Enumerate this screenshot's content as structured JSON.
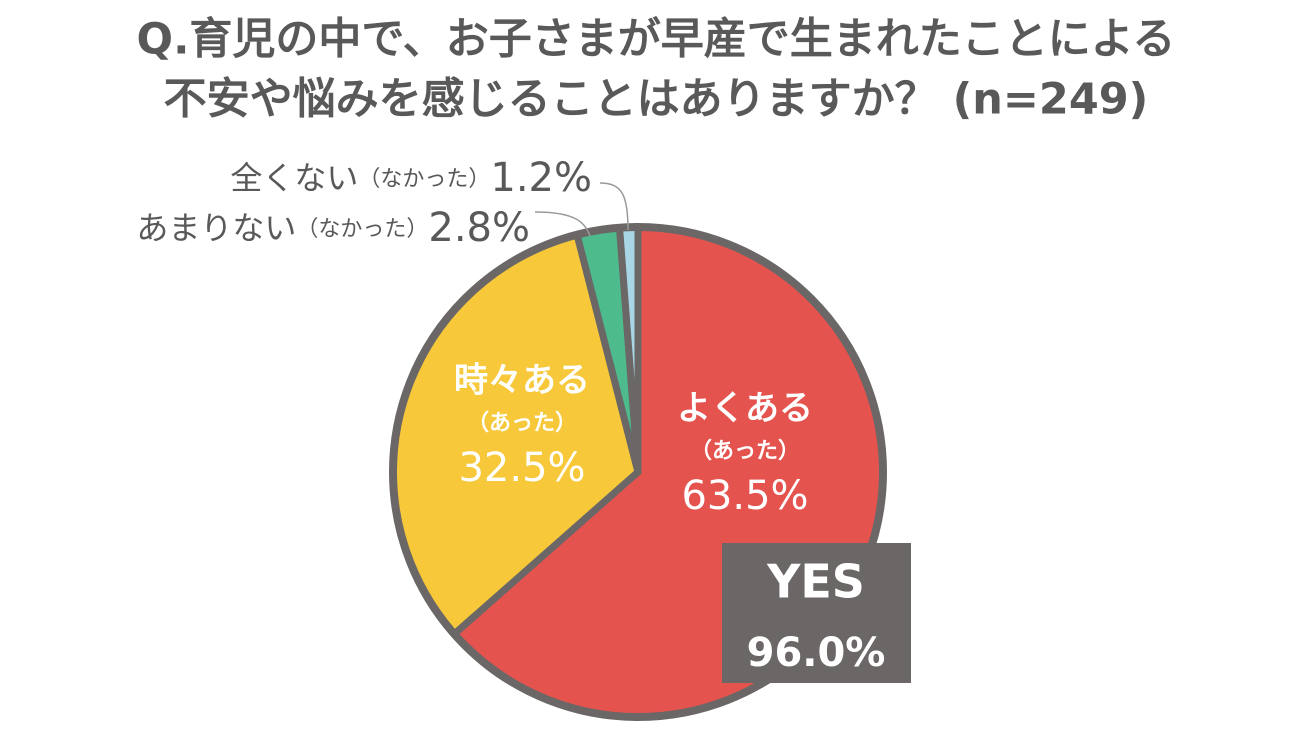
{
  "chart_data": {
    "type": "pie",
    "title": [
      "Q.育児の中で、お子さまが早産で生まれたことによる",
      "不安や悩みを感じることはありますか？ (n=249)"
    ],
    "categories": [
      "よくある",
      "時々ある",
      "あまりない",
      "全くない"
    ],
    "category_notes": [
      "（あった）",
      "（あった）",
      "（なかった）",
      "（なかった）"
    ],
    "values": [
      63.5,
      32.5,
      2.8,
      1.2
    ],
    "value_labels": [
      "63.5%",
      "32.5%",
      "2.8%",
      "1.2%"
    ],
    "colors": [
      "#e5534f",
      "#f6c83a",
      "#4dbb8c",
      "#a9d6e5"
    ],
    "annotation": {
      "label": "YES",
      "value": 96.0,
      "value_label": "96.0%"
    }
  }
}
